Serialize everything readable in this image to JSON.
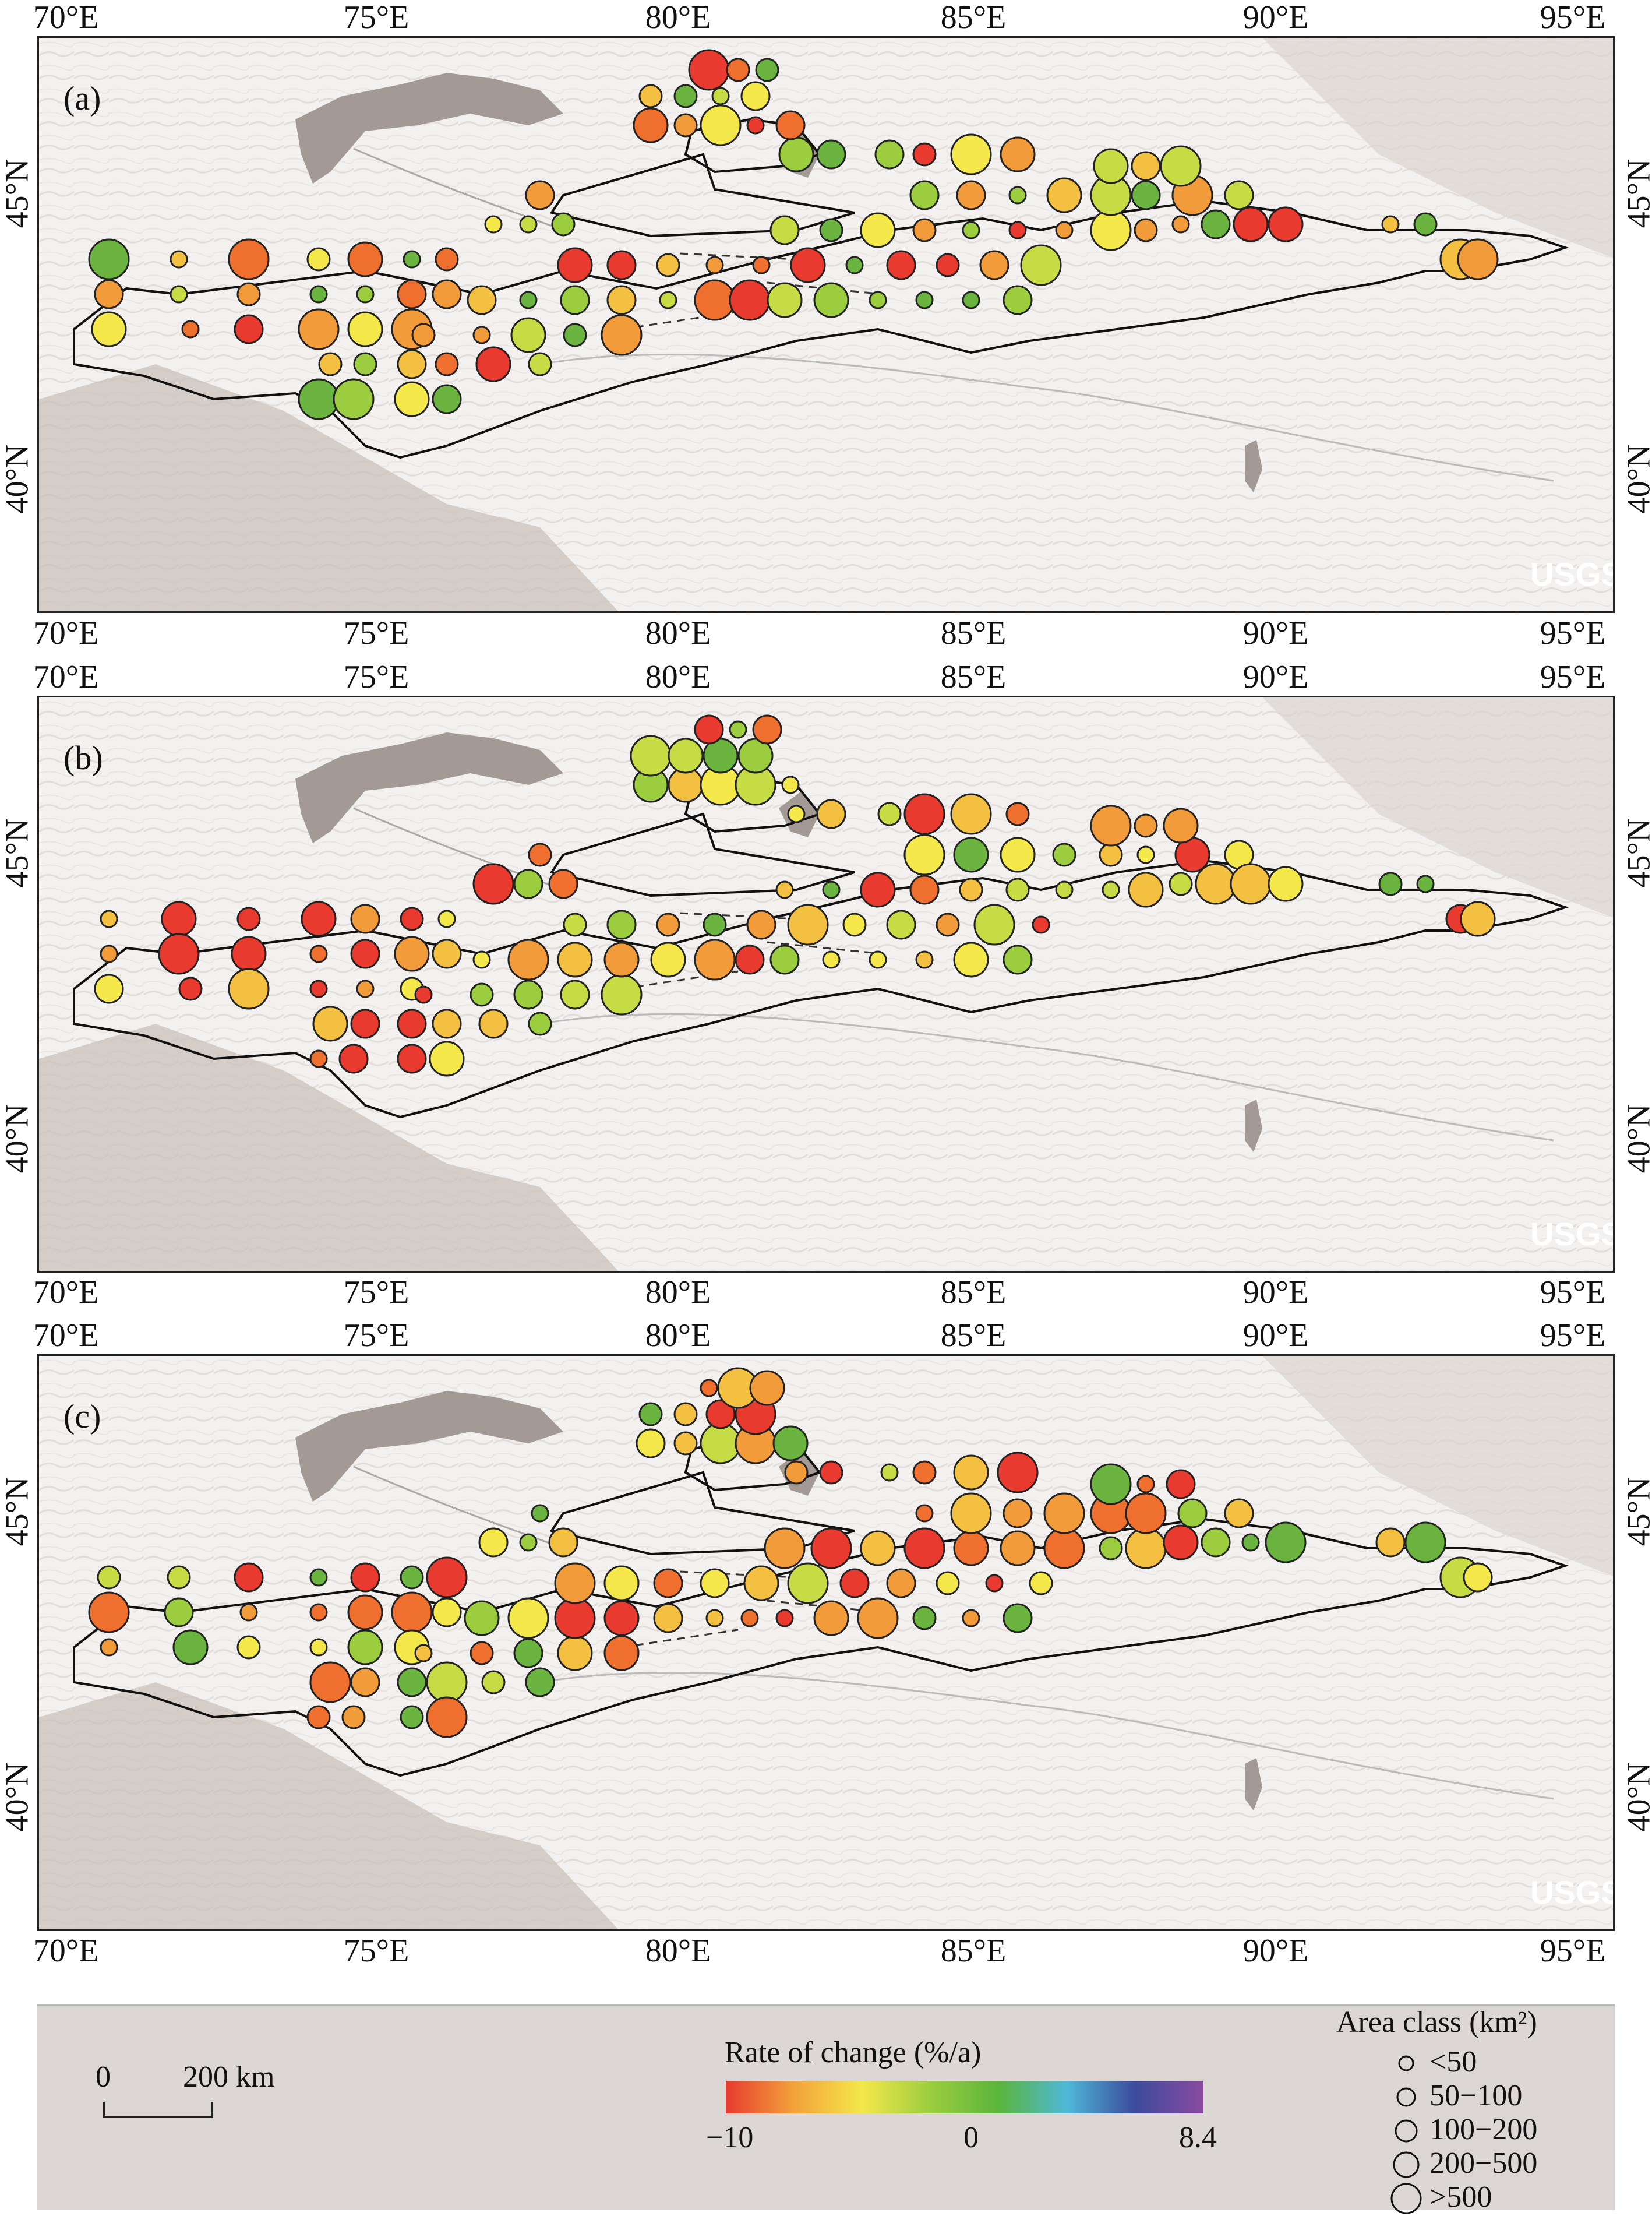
{
  "map": {
    "lon_labels": [
      "70°E",
      "75°E",
      "80°E",
      "85°E",
      "90°E",
      "95°E"
    ],
    "lat_labels": [
      "45°N",
      "40°N"
    ],
    "watermark": "USGS",
    "panels": [
      {
        "label": "(a)"
      },
      {
        "label": "(b)"
      },
      {
        "label": "(c)"
      }
    ]
  },
  "legend": {
    "scale": {
      "zero": "0",
      "distance": "200 km"
    },
    "colorbar": {
      "title": "Rate of change (%/a)",
      "min_label": "−10",
      "mid_label": "0",
      "max_label": "8.4",
      "colors": [
        "#e83a2f",
        "#f3a23a",
        "#f4e84a",
        "#9ccd3f",
        "#5ab53b",
        "#4fb8d8",
        "#3b4a9c",
        "#8a4aa0"
      ]
    },
    "area_class": {
      "title": "Area class (km²)",
      "classes": [
        "<50",
        "50−100",
        "100−200",
        "200−500",
        ">500"
      ]
    }
  }
}
